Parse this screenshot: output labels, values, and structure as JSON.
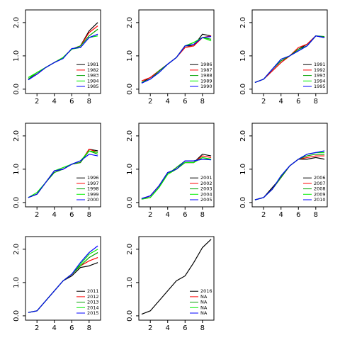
{
  "chart_data": [
    {
      "type": "line",
      "x": [
        1,
        2,
        3,
        4,
        5,
        6,
        7,
        8,
        9
      ],
      "xlim": [
        0.68,
        9.32
      ],
      "ylim": [
        -0.13,
        2.38
      ],
      "xticks": [
        2,
        4,
        6,
        8
      ],
      "yticks": [
        {
          "value": 0,
          "label": "0.0"
        },
        {
          "value": 1,
          "label": "1.0"
        },
        {
          "value": 2,
          "label": "2.0"
        }
      ],
      "legend": "bottom-right",
      "series": [
        {
          "name": "1981",
          "color": "#000000",
          "values": [
            0.3,
            0.45,
            0.65,
            0.8,
            0.95,
            1.2,
            1.3,
            1.75,
            2.0
          ]
        },
        {
          "name": "1982",
          "color": "#ff0000",
          "values": [
            0.3,
            0.45,
            0.65,
            0.8,
            0.95,
            1.2,
            1.3,
            1.7,
            1.9
          ]
        },
        {
          "name": "1983",
          "color": "#00a000",
          "values": [
            0.3,
            0.5,
            0.65,
            0.8,
            0.95,
            1.2,
            1.3,
            1.6,
            1.8
          ]
        },
        {
          "name": "1984",
          "color": "#00ee00",
          "values": [
            0.35,
            0.5,
            0.65,
            0.8,
            0.95,
            1.2,
            1.25,
            1.55,
            1.6
          ]
        },
        {
          "name": "1985",
          "color": "#0000ff",
          "values": [
            0.28,
            0.45,
            0.65,
            0.8,
            0.92,
            1.22,
            1.25,
            1.55,
            1.65
          ]
        }
      ]
    },
    {
      "type": "line",
      "x": [
        1,
        2,
        3,
        4,
        5,
        6,
        7,
        8,
        9
      ],
      "xlim": [
        0.68,
        9.32
      ],
      "ylim": [
        -0.13,
        2.38
      ],
      "xticks": [
        2,
        4,
        6,
        8
      ],
      "yticks": [
        {
          "value": 0,
          "label": "0.0"
        },
        {
          "value": 1,
          "label": "1.0"
        },
        {
          "value": 2,
          "label": "2.0"
        }
      ],
      "legend": "bottom-right",
      "series": [
        {
          "name": "1986",
          "color": "#000000",
          "values": [
            0.2,
            0.35,
            0.55,
            0.75,
            0.95,
            1.3,
            1.3,
            1.65,
            1.6
          ]
        },
        {
          "name": "1987",
          "color": "#ff0000",
          "values": [
            0.25,
            0.35,
            0.55,
            0.75,
            0.95,
            1.25,
            1.3,
            1.55,
            1.6
          ]
        },
        {
          "name": "1988",
          "color": "#00a000",
          "values": [
            0.2,
            0.3,
            0.55,
            0.75,
            0.95,
            1.3,
            1.4,
            1.55,
            1.5
          ]
        },
        {
          "name": "1989",
          "color": "#00ee00",
          "values": [
            0.2,
            0.3,
            0.5,
            0.75,
            0.95,
            1.3,
            1.4,
            1.55,
            1.45
          ]
        },
        {
          "name": "1990",
          "color": "#0000ff",
          "values": [
            0.18,
            0.3,
            0.5,
            0.75,
            0.95,
            1.3,
            1.35,
            1.55,
            1.58
          ]
        }
      ]
    },
    {
      "type": "line",
      "x": [
        1,
        2,
        3,
        4,
        5,
        6,
        7,
        8,
        9
      ],
      "xlim": [
        0.68,
        9.32
      ],
      "ylim": [
        -0.13,
        2.38
      ],
      "xticks": [
        2,
        4,
        6,
        8
      ],
      "yticks": [
        {
          "value": 0,
          "label": "0.0"
        },
        {
          "value": 1,
          "label": "1.0"
        },
        {
          "value": 2,
          "label": "2.0"
        }
      ],
      "legend": "bottom-right",
      "series": [
        {
          "name": "1991",
          "color": "#000000",
          "values": [
            0.2,
            0.3,
            0.55,
            0.8,
            1.0,
            1.2,
            1.35,
            1.6,
            1.55
          ]
        },
        {
          "name": "1992",
          "color": "#ff0000",
          "values": [
            0.2,
            0.3,
            0.55,
            0.8,
            1.0,
            1.25,
            1.35,
            1.6,
            1.55
          ]
        },
        {
          "name": "1993",
          "color": "#00a000",
          "values": [
            0.2,
            0.3,
            0.6,
            0.85,
            1.0,
            1.2,
            1.3,
            1.6,
            1.58
          ]
        },
        {
          "name": "1994",
          "color": "#00ee00",
          "values": [
            0.2,
            0.3,
            0.6,
            0.9,
            1.0,
            1.15,
            1.3,
            1.6,
            1.55
          ]
        },
        {
          "name": "1995",
          "color": "#0000ff",
          "values": [
            0.2,
            0.3,
            0.6,
            0.9,
            1.0,
            1.15,
            1.3,
            1.6,
            1.55
          ]
        }
      ]
    },
    {
      "type": "line",
      "x": [
        1,
        2,
        3,
        4,
        5,
        6,
        7,
        8,
        9
      ],
      "xlim": [
        0.68,
        9.32
      ],
      "ylim": [
        -0.13,
        2.38
      ],
      "xticks": [
        2,
        4,
        6,
        8
      ],
      "yticks": [
        {
          "value": 0,
          "label": "0.0"
        },
        {
          "value": 1,
          "label": "1.0"
        },
        {
          "value": 2,
          "label": "2.0"
        }
      ],
      "legend": "bottom-right",
      "series": [
        {
          "name": "1996",
          "color": "#000000",
          "values": [
            0.15,
            0.25,
            0.6,
            0.95,
            1.0,
            1.15,
            1.2,
            1.6,
            1.55
          ]
        },
        {
          "name": "1997",
          "color": "#ff0000",
          "values": [
            0.15,
            0.25,
            0.6,
            0.95,
            1.0,
            1.15,
            1.2,
            1.6,
            1.5
          ]
        },
        {
          "name": "1998",
          "color": "#00a000",
          "values": [
            0.15,
            0.25,
            0.6,
            0.9,
            1.0,
            1.15,
            1.2,
            1.55,
            1.45
          ]
        },
        {
          "name": "1999",
          "color": "#00ee00",
          "values": [
            0.15,
            0.3,
            0.6,
            0.95,
            1.05,
            1.15,
            1.25,
            1.55,
            1.5
          ]
        },
        {
          "name": "2000",
          "color": "#0000ff",
          "values": [
            0.15,
            0.25,
            0.6,
            0.95,
            1.0,
            1.15,
            1.25,
            1.45,
            1.4
          ]
        }
      ]
    },
    {
      "type": "line",
      "x": [
        1,
        2,
        3,
        4,
        5,
        6,
        7,
        8,
        9
      ],
      "xlim": [
        0.68,
        9.32
      ],
      "ylim": [
        -0.13,
        2.38
      ],
      "xticks": [
        2,
        4,
        6,
        8
      ],
      "yticks": [
        {
          "value": 0,
          "label": "0.0"
        },
        {
          "value": 1,
          "label": "1.0"
        },
        {
          "value": 2,
          "label": "2.0"
        }
      ],
      "legend": "bottom-right",
      "series": [
        {
          "name": "2001",
          "color": "#000000",
          "values": [
            0.1,
            0.2,
            0.5,
            0.9,
            1.0,
            1.2,
            1.2,
            1.45,
            1.4
          ]
        },
        {
          "name": "2002",
          "color": "#ff0000",
          "values": [
            0.1,
            0.2,
            0.5,
            0.85,
            1.0,
            1.2,
            1.2,
            1.4,
            1.35
          ]
        },
        {
          "name": "2003",
          "color": "#00a000",
          "values": [
            0.1,
            0.15,
            0.45,
            0.85,
            1.05,
            1.25,
            1.25,
            1.3,
            1.3
          ]
        },
        {
          "name": "2004",
          "color": "#00ee00",
          "values": [
            0.1,
            0.15,
            0.45,
            0.85,
            1.0,
            1.2,
            1.2,
            1.35,
            1.3
          ]
        },
        {
          "name": "2005",
          "color": "#0000ff",
          "values": [
            0.12,
            0.2,
            0.5,
            0.9,
            1.0,
            1.25,
            1.25,
            1.3,
            1.28
          ]
        }
      ]
    },
    {
      "type": "line",
      "x": [
        1,
        2,
        3,
        4,
        5,
        6,
        7,
        8,
        9
      ],
      "xlim": [
        0.68,
        9.32
      ],
      "ylim": [
        -0.13,
        2.38
      ],
      "xticks": [
        2,
        4,
        6,
        8
      ],
      "yticks": [
        {
          "value": 0,
          "label": "0.0"
        },
        {
          "value": 1,
          "label": "1.0"
        },
        {
          "value": 2,
          "label": "2.0"
        }
      ],
      "legend": "bottom-right",
      "series": [
        {
          "name": "2006",
          "color": "#000000",
          "values": [
            0.08,
            0.15,
            0.45,
            0.75,
            1.1,
            1.3,
            1.3,
            1.35,
            1.3
          ]
        },
        {
          "name": "2007",
          "color": "#ff0000",
          "values": [
            0.08,
            0.15,
            0.4,
            0.75,
            1.1,
            1.3,
            1.35,
            1.4,
            1.4
          ]
        },
        {
          "name": "2008",
          "color": "#00a000",
          "values": [
            0.08,
            0.15,
            0.4,
            0.75,
            1.1,
            1.3,
            1.4,
            1.45,
            1.45
          ]
        },
        {
          "name": "2009",
          "color": "#00ee00",
          "values": [
            0.08,
            0.15,
            0.4,
            0.8,
            1.1,
            1.3,
            1.45,
            1.5,
            1.5
          ]
        },
        {
          "name": "2010",
          "color": "#0000ff",
          "values": [
            0.08,
            0.15,
            0.4,
            0.8,
            1.1,
            1.3,
            1.45,
            1.5,
            1.55
          ]
        }
      ]
    },
    {
      "type": "line",
      "x": [
        1,
        2,
        3,
        4,
        5,
        6,
        7,
        8,
        9
      ],
      "xlim": [
        0.68,
        9.32
      ],
      "ylim": [
        -0.13,
        2.38
      ],
      "xticks": [
        2,
        4,
        6,
        8
      ],
      "yticks": [
        {
          "value": 0,
          "label": "0.0"
        },
        {
          "value": 1,
          "label": "1.0"
        },
        {
          "value": 2,
          "label": "2.0"
        }
      ],
      "legend": "bottom-right",
      "series": [
        {
          "name": "2011",
          "color": "#000000",
          "values": [
            0.1,
            0.15,
            0.45,
            0.75,
            1.05,
            1.2,
            1.45,
            1.5,
            1.6
          ]
        },
        {
          "name": "2012",
          "color": "#ff0000",
          "values": [
            0.1,
            0.15,
            0.45,
            0.75,
            1.05,
            1.25,
            1.5,
            1.65,
            1.75
          ]
        },
        {
          "name": "2013",
          "color": "#00a000",
          "values": [
            0.1,
            0.15,
            0.45,
            0.75,
            1.05,
            1.25,
            1.5,
            1.75,
            1.9
          ]
        },
        {
          "name": "2014",
          "color": "#00ee00",
          "values": [
            0.1,
            0.15,
            0.45,
            0.75,
            1.05,
            1.25,
            1.55,
            1.85,
            2.0
          ]
        },
        {
          "name": "2015",
          "color": "#0000ff",
          "values": [
            0.1,
            0.15,
            0.45,
            0.75,
            1.05,
            1.25,
            1.6,
            1.9,
            2.1
          ]
        }
      ]
    },
    {
      "type": "line",
      "x": [
        1,
        2,
        3,
        4,
        5,
        6,
        7,
        8,
        9
      ],
      "xlim": [
        0.68,
        9.32
      ],
      "ylim": [
        -0.13,
        2.38
      ],
      "xticks": [
        2,
        4,
        6,
        8
      ],
      "yticks": [
        {
          "value": 0,
          "label": "0.0"
        },
        {
          "value": 1,
          "label": "1.0"
        },
        {
          "value": 2,
          "label": "2.0"
        }
      ],
      "legend": "bottom-right",
      "series": [
        {
          "name": "2016",
          "color": "#000000",
          "values": [
            0.05,
            0.15,
            0.45,
            0.75,
            1.05,
            1.2,
            1.6,
            2.05,
            2.3
          ]
        },
        {
          "name": "NA",
          "color": "#ff0000",
          "values": [
            null,
            null,
            null,
            null,
            null,
            null,
            null,
            null,
            null
          ]
        },
        {
          "name": "NA",
          "color": "#00a000",
          "values": [
            null,
            null,
            null,
            null,
            null,
            null,
            null,
            null,
            null
          ]
        },
        {
          "name": "NA",
          "color": "#00ee00",
          "values": [
            null,
            null,
            null,
            null,
            null,
            null,
            null,
            null,
            null
          ]
        },
        {
          "name": "NA",
          "color": "#0000ff",
          "values": [
            null,
            null,
            null,
            null,
            null,
            null,
            null,
            null,
            null
          ]
        }
      ]
    }
  ]
}
